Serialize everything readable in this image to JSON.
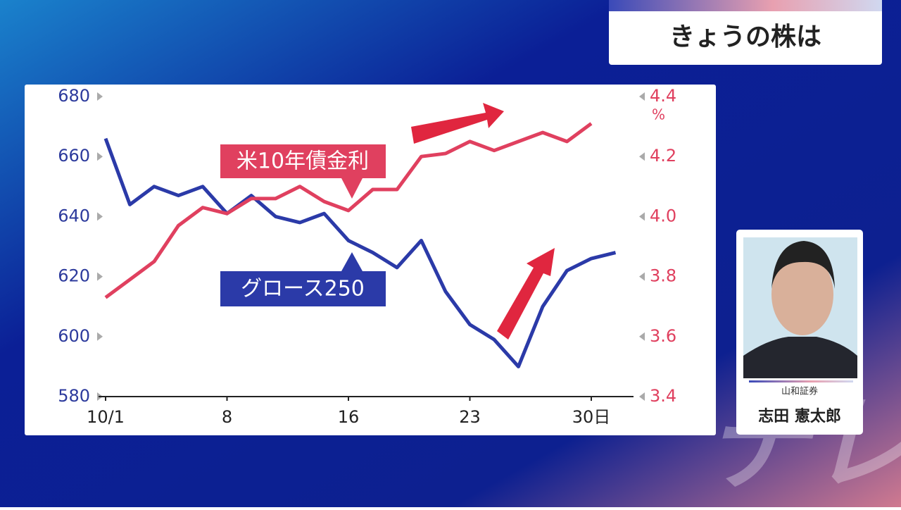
{
  "header": {
    "title": "きょうの株は"
  },
  "guest": {
    "company": "山和証券",
    "name": "志田 憲太郎"
  },
  "watermark": "テレ東",
  "chart_data": {
    "type": "line",
    "categories": [
      "10/1",
      null,
      null,
      null,
      null,
      "8",
      null,
      null,
      null,
      null,
      "16",
      null,
      null,
      null,
      null,
      "23",
      null,
      null,
      null,
      null,
      "30日",
      null
    ],
    "series": [
      {
        "name": "グロース250",
        "color": "#2b3aa8",
        "axis": "y",
        "values": [
          666,
          644,
          650,
          647,
          650,
          641,
          647,
          640,
          638,
          641,
          632,
          628,
          623,
          632,
          615,
          604,
          599,
          590,
          610,
          622,
          626,
          628
        ]
      },
      {
        "name": "米10年債金利",
        "color": "#e0405f",
        "axis": "y2",
        "values": [
          3.73,
          3.79,
          3.85,
          3.97,
          4.03,
          4.01,
          4.06,
          4.06,
          4.1,
          4.05,
          4.02,
          4.09,
          4.09,
          4.2,
          4.21,
          4.25,
          4.22,
          4.25,
          4.28,
          4.25,
          4.31,
          null
        ]
      }
    ],
    "ylim": [
      580,
      680
    ],
    "yticks": [
      580,
      600,
      620,
      640,
      660,
      680
    ],
    "y2lim": [
      3.4,
      4.4
    ],
    "y2ticks": [
      3.4,
      3.6,
      3.8,
      {
        "value": 4,
        "label": "4.0"
      },
      4.2,
      4.4
    ],
    "y2unit": "%"
  }
}
